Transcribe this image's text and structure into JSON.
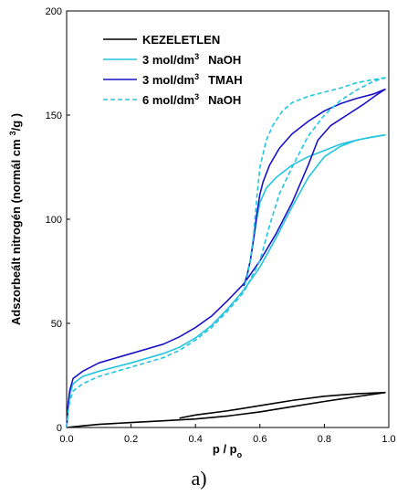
{
  "chart_data": {
    "type": "line",
    "panel_label": "a)",
    "xlabel": "p / p",
    "xlabel_sub": "o",
    "ylabel": "Adszorbeált nitrogén (normál cm",
    "ylabel_sup": "3",
    "ylabel_tail": "/g )",
    "xlim": [
      0.0,
      1.0
    ],
    "ylim": [
      0,
      200
    ],
    "xticks": [
      "0.0",
      "0.2",
      "0.4",
      "0.6",
      "0.8",
      "1.0"
    ],
    "yticks": [
      "0",
      "50",
      "100",
      "150",
      "200"
    ],
    "grid": false,
    "legend_position": "top-left",
    "series": [
      {
        "name": "KEZELETLEN",
        "legend_main": "KEZELETLEN",
        "legend_sup": "",
        "legend_tail": "",
        "color": "#000000",
        "dash": false,
        "adsorption": [
          [
            0.0,
            0
          ],
          [
            0.05,
            0.8
          ],
          [
            0.1,
            1.5
          ],
          [
            0.2,
            2.4
          ],
          [
            0.3,
            3.2
          ],
          [
            0.4,
            4.1
          ],
          [
            0.5,
            5.5
          ],
          [
            0.6,
            7.5
          ],
          [
            0.7,
            10.0
          ],
          [
            0.8,
            12.5
          ],
          [
            0.9,
            14.8
          ],
          [
            0.99,
            16.8
          ]
        ],
        "desorption": [
          [
            0.99,
            16.8
          ],
          [
            0.9,
            16.2
          ],
          [
            0.8,
            15.0
          ],
          [
            0.7,
            13.0
          ],
          [
            0.6,
            10.5
          ],
          [
            0.5,
            8.0
          ],
          [
            0.4,
            6.0
          ],
          [
            0.35,
            4.5
          ]
        ]
      },
      {
        "name": "3 mol/dm3 NaOH",
        "legend_main": "3 mol/dm",
        "legend_sup": "3",
        "legend_tail": "NaOH",
        "color": "#22c4e0",
        "dash": false,
        "adsorption": [
          [
            0.0,
            0
          ],
          [
            0.005,
            10
          ],
          [
            0.01,
            16
          ],
          [
            0.02,
            21
          ],
          [
            0.05,
            24.5
          ],
          [
            0.1,
            27
          ],
          [
            0.2,
            31
          ],
          [
            0.3,
            35.5
          ],
          [
            0.35,
            38.5
          ],
          [
            0.4,
            43
          ],
          [
            0.45,
            49
          ],
          [
            0.5,
            57
          ],
          [
            0.55,
            66
          ],
          [
            0.6,
            77
          ],
          [
            0.65,
            91
          ],
          [
            0.7,
            106
          ],
          [
            0.75,
            120
          ],
          [
            0.8,
            130
          ],
          [
            0.85,
            135
          ],
          [
            0.9,
            138
          ],
          [
            0.95,
            139.5
          ],
          [
            0.99,
            140.5
          ]
        ],
        "desorption": [
          [
            0.99,
            140.5
          ],
          [
            0.95,
            139.5
          ],
          [
            0.9,
            138
          ],
          [
            0.85,
            136
          ],
          [
            0.8,
            133
          ],
          [
            0.75,
            130
          ],
          [
            0.7,
            126
          ],
          [
            0.65,
            120
          ],
          [
            0.62,
            115
          ],
          [
            0.6,
            108
          ],
          [
            0.59,
            100
          ],
          [
            0.58,
            90
          ],
          [
            0.57,
            80
          ],
          [
            0.56,
            73
          ],
          [
            0.55,
            68
          ]
        ]
      },
      {
        "name": "3 mol/dm3 TMAH",
        "legend_main": "3 mol/dm",
        "legend_sup": "3",
        "legend_tail": "TMAH",
        "color": "#1a12c8",
        "dash": false,
        "adsorption": [
          [
            0.0,
            0
          ],
          [
            0.005,
            12
          ],
          [
            0.01,
            18
          ],
          [
            0.02,
            23.5
          ],
          [
            0.05,
            27
          ],
          [
            0.1,
            31
          ],
          [
            0.2,
            35.5
          ],
          [
            0.3,
            40
          ],
          [
            0.35,
            43.5
          ],
          [
            0.4,
            48
          ],
          [
            0.45,
            53.5
          ],
          [
            0.5,
            61
          ],
          [
            0.55,
            69
          ],
          [
            0.6,
            80
          ],
          [
            0.65,
            93
          ],
          [
            0.7,
            108
          ],
          [
            0.75,
            126
          ],
          [
            0.78,
            138
          ],
          [
            0.82,
            145
          ],
          [
            0.87,
            150
          ],
          [
            0.92,
            155
          ],
          [
            0.96,
            159.5
          ],
          [
            0.99,
            162.5
          ]
        ],
        "desorption": [
          [
            0.99,
            162.5
          ],
          [
            0.95,
            160
          ],
          [
            0.9,
            158
          ],
          [
            0.85,
            155.5
          ],
          [
            0.8,
            152
          ],
          [
            0.75,
            147
          ],
          [
            0.7,
            141
          ],
          [
            0.66,
            134
          ],
          [
            0.63,
            126
          ],
          [
            0.61,
            118
          ],
          [
            0.6,
            112
          ],
          [
            0.59,
            102
          ],
          [
            0.58,
            90
          ],
          [
            0.57,
            80
          ],
          [
            0.56,
            73
          ],
          [
            0.55,
            68
          ]
        ]
      },
      {
        "name": "6 mol/dm3 NaOH",
        "legend_main": "6 mol/dm",
        "legend_sup": "3",
        "legend_tail": "NaOH",
        "color": "#22c4e0",
        "dash": true,
        "adsorption": [
          [
            0.0,
            0
          ],
          [
            0.005,
            8
          ],
          [
            0.01,
            13
          ],
          [
            0.02,
            17.5
          ],
          [
            0.05,
            21
          ],
          [
            0.1,
            24.5
          ],
          [
            0.2,
            29
          ],
          [
            0.3,
            33.5
          ],
          [
            0.35,
            37
          ],
          [
            0.4,
            42
          ],
          [
            0.45,
            48
          ],
          [
            0.5,
            56
          ],
          [
            0.55,
            65
          ],
          [
            0.6,
            80
          ],
          [
            0.63,
            97
          ],
          [
            0.66,
            112
          ],
          [
            0.7,
            125
          ],
          [
            0.75,
            140
          ],
          [
            0.8,
            150
          ],
          [
            0.85,
            157
          ],
          [
            0.9,
            162
          ],
          [
            0.95,
            166
          ],
          [
            0.99,
            168
          ]
        ],
        "desorption": [
          [
            0.99,
            168
          ],
          [
            0.95,
            167
          ],
          [
            0.9,
            165.5
          ],
          [
            0.85,
            163
          ],
          [
            0.8,
            161
          ],
          [
            0.75,
            159
          ],
          [
            0.7,
            156
          ],
          [
            0.67,
            152
          ],
          [
            0.64,
            145
          ],
          [
            0.62,
            138
          ],
          [
            0.6,
            125
          ],
          [
            0.59,
            110
          ],
          [
            0.58,
            92
          ],
          [
            0.57,
            80
          ],
          [
            0.56,
            72
          ],
          [
            0.55,
            67
          ]
        ]
      }
    ]
  }
}
